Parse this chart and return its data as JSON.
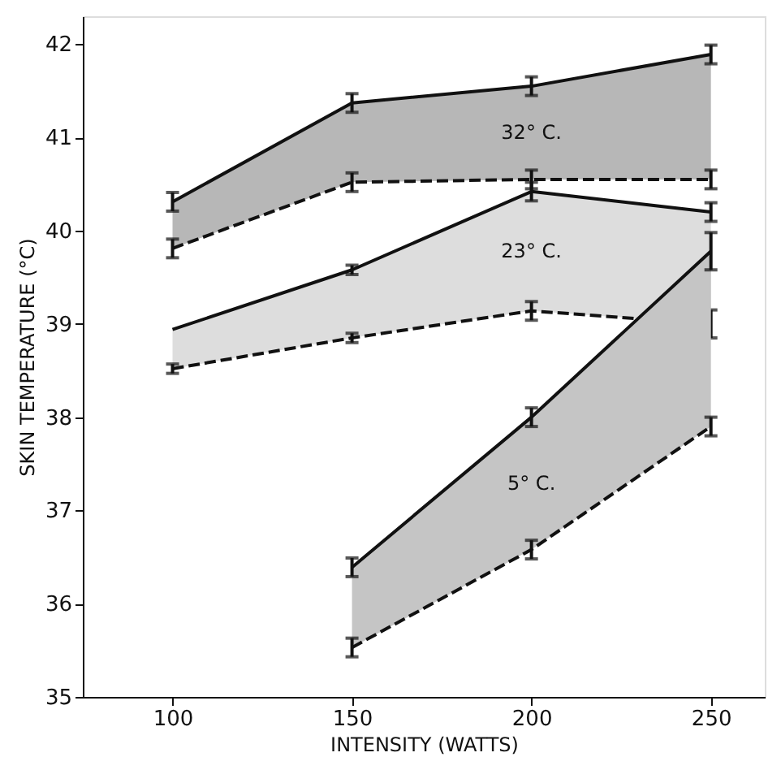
{
  "chart_data": {
    "type": "line",
    "xlabel": "INTENSITY  (WATTS)",
    "ylabel": "SKIN TEMPERATURE (°C)",
    "xlim": [
      75,
      265
    ],
    "xticks": [
      100,
      150,
      200,
      250
    ],
    "ylim": [
      35,
      42.3
    ],
    "yticks": [
      35,
      36,
      37,
      38,
      39,
      40,
      41,
      42
    ],
    "grid": false,
    "marker": "none",
    "series": [
      {
        "color": "#111111",
        "line_style": "solid",
        "x": [
          100,
          150,
          200,
          250
        ],
        "values": [
          40.31,
          41.37,
          41.55,
          41.89
        ],
        "errors": [
          0.1,
          0.1,
          0.1,
          0.1
        ],
        "lower": [
          39.81,
          40.52,
          40.55,
          40.55
        ],
        "upper": [
          40.31,
          41.37,
          41.55,
          41.89
        ]
      },
      {
        "color": "#111111",
        "line_style": "dashed",
        "x": [
          100,
          150,
          200,
          250
        ],
        "values": [
          39.81,
          40.52,
          40.55,
          40.55
        ],
        "errors": [
          0.1,
          0.1,
          0.1,
          0.1
        ]
      },
      {
        "color": "#111111",
        "line_style": "solid",
        "x": [
          100,
          150,
          200,
          250
        ],
        "values": [
          38.94,
          39.58,
          40.42,
          40.2
        ],
        "errors": [
          null,
          0.05,
          0.1,
          0.1
        ],
        "lower": [
          38.52,
          38.85,
          39.14,
          39.0
        ],
        "upper": [
          38.94,
          39.58,
          40.42,
          40.2
        ]
      },
      {
        "color": "#111111",
        "line_style": "dashed",
        "x": [
          100,
          150,
          200,
          250
        ],
        "values": [
          38.52,
          38.85,
          39.14,
          39.0
        ],
        "errors": [
          0.05,
          0.05,
          0.1,
          0.15
        ]
      },
      {
        "color": "#111111",
        "line_style": "solid",
        "x": [
          150,
          200,
          250
        ],
        "values": [
          36.39,
          38.0,
          39.78
        ],
        "errors": [
          0.1,
          0.1,
          0.2
        ],
        "lower": [
          35.53,
          36.58,
          37.9
        ],
        "upper": [
          36.39,
          38.0,
          39.78
        ]
      },
      {
        "color": "#111111",
        "line_style": "dashed",
        "x": [
          150,
          200,
          250
        ],
        "values": [
          35.53,
          36.58,
          37.9
        ],
        "errors": [
          0.1,
          0.1,
          0.1
        ]
      }
    ],
    "annotations": [
      "32° C.",
      "23° C.",
      "5° C."
    ]
  }
}
